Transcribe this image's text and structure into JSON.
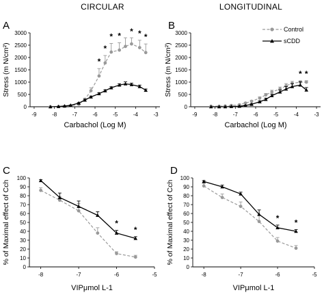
{
  "figure": {
    "column_titles": [
      "CIRCULAR",
      "LONGITUDINAL"
    ],
    "legend": [
      {
        "label": "Control",
        "color": "#999999",
        "dash": true,
        "marker": "circle"
      },
      {
        "label": "sCDD",
        "color": "#000000",
        "dash": false,
        "marker": "triangle"
      }
    ]
  },
  "chart_data": [
    {
      "panel": "A",
      "type": "line",
      "column_title": "CIRCULAR",
      "xlabel": "Carbachol (Log M)",
      "ylabel": "Stress (m N/cm²)",
      "xlim": [
        -9.2,
        -2.8
      ],
      "ylim": [
        0,
        3000
      ],
      "xticks": [
        -9,
        -8,
        -7,
        -6,
        -5,
        -4,
        -3
      ],
      "yticks": [
        0,
        500,
        1000,
        1500,
        2000,
        2500,
        3000
      ],
      "x": [
        -8.2,
        -7.8,
        -7.5,
        -7.2,
        -6.8,
        -6.5,
        -6.2,
        -5.8,
        -5.5,
        -5.2,
        -4.8,
        -4.5,
        -4.2,
        -3.8,
        -3.5
      ],
      "series": [
        {
          "name": "Control",
          "values": [
            0,
            10,
            20,
            40,
            100,
            300,
            650,
            1250,
            1780,
            2220,
            2300,
            2450,
            2550,
            2400,
            2200
          ],
          "errors": [
            0,
            0,
            0,
            10,
            20,
            50,
            120,
            300,
            300,
            350,
            300,
            350,
            250,
            300,
            350
          ]
        },
        {
          "name": "sCDD",
          "values": [
            0,
            10,
            30,
            60,
            150,
            270,
            400,
            530,
            650,
            770,
            880,
            930,
            900,
            820,
            670
          ],
          "errors": [
            0,
            0,
            0,
            10,
            20,
            30,
            30,
            40,
            40,
            40,
            50,
            80,
            60,
            60,
            50
          ]
        }
      ],
      "annotations": [
        "*",
        "*",
        "*",
        "*",
        "*",
        "*",
        "*"
      ],
      "annotation_x": [
        -5.8,
        -5.5,
        -5.2,
        -4.8,
        -4.2,
        -3.8,
        -3.5
      ]
    },
    {
      "panel": "B",
      "type": "line",
      "column_title": "LONGITUDINAL",
      "xlabel": "Carbachol (Log M)",
      "ylabel": "Stress (m N/cm²)",
      "xlim": [
        -9.2,
        -2.8
      ],
      "ylim": [
        0,
        3000
      ],
      "xticks": [
        -9,
        -8,
        -7,
        -6,
        -5,
        -4,
        -3
      ],
      "yticks": [
        0,
        500,
        1000,
        1500,
        2000,
        2500,
        3000
      ],
      "x": [
        -8.2,
        -7.8,
        -7.5,
        -7.2,
        -6.8,
        -6.5,
        -6.2,
        -5.8,
        -5.5,
        -5.2,
        -4.8,
        -4.5,
        -4.2,
        -3.8,
        -3.5
      ],
      "series": [
        {
          "name": "Control",
          "values": [
            20,
            20,
            30,
            50,
            80,
            150,
            220,
            350,
            480,
            600,
            720,
            850,
            950,
            1000,
            1000
          ],
          "errors": [
            0,
            0,
            10,
            10,
            20,
            30,
            40,
            50,
            60,
            70,
            80,
            90,
            80,
            60,
            60
          ]
        },
        {
          "name": "sCDD",
          "values": [
            0,
            0,
            0,
            10,
            20,
            50,
            100,
            200,
            300,
            450,
            600,
            720,
            820,
            880,
            680
          ],
          "errors": [
            0,
            0,
            0,
            0,
            10,
            20,
            30,
            40,
            50,
            60,
            80,
            100,
            120,
            130,
            100
          ]
        }
      ],
      "annotations": [
        "*",
        "*"
      ],
      "annotation_x": [
        -3.8,
        -3.5
      ]
    },
    {
      "panel": "C",
      "type": "line",
      "xlabel": "VIPμmol L-1",
      "ylabel": "% of Maximal effect of Cch",
      "xlim": [
        -8.3,
        -5.0
      ],
      "ylim": [
        0,
        100
      ],
      "xticks": [
        -8,
        -7,
        -6,
        -5
      ],
      "xtick_labels": [
        "-8",
        "-7",
        "-6",
        "-5"
      ],
      "yticks": [
        0,
        10,
        20,
        30,
        40,
        50,
        60,
        70,
        80,
        90,
        100
      ],
      "x": [
        -8.0,
        -7.5,
        -7.0,
        -6.5,
        -6.0,
        -5.5
      ],
      "series": [
        {
          "name": "Control",
          "values": [
            86,
            75,
            63,
            38,
            15,
            11
          ],
          "errors": [
            3,
            4,
            8,
            6,
            2,
            2
          ]
        },
        {
          "name": "sCDD",
          "values": [
            97,
            78,
            68,
            58,
            38,
            32
          ],
          "errors": [
            1,
            5,
            6,
            4,
            3,
            2
          ]
        }
      ],
      "annotations": [
        "*",
        "*"
      ],
      "annotation_x": [
        -6.0,
        -5.5
      ]
    },
    {
      "panel": "D",
      "type": "line",
      "xlabel": "VIPμmol L-1",
      "ylabel": "% of Maximal effect of Cch",
      "xlim": [
        -8.3,
        -5.0
      ],
      "ylim": [
        0,
        100
      ],
      "xticks": [
        -8,
        -7,
        -6,
        -5
      ],
      "xtick_labels": [
        "-8",
        "-7",
        "-6",
        "-5"
      ],
      "yticks": [
        0,
        10,
        20,
        30,
        40,
        50,
        60,
        70,
        80,
        90,
        100
      ],
      "x": [
        -8.0,
        -7.5,
        -7.0,
        -6.5,
        -6.0,
        -5.5
      ],
      "series": [
        {
          "name": "Control",
          "values": [
            91,
            78,
            68,
            51,
            29,
            21
          ],
          "errors": [
            3,
            4,
            5,
            7,
            4,
            3
          ]
        },
        {
          "name": "sCDD",
          "values": [
            96,
            90,
            82,
            59,
            44,
            40
          ],
          "errors": [
            1,
            2,
            2,
            5,
            3,
            2
          ]
        }
      ],
      "annotations": [
        "*",
        "*"
      ],
      "annotation_x": [
        -6.0,
        -5.5
      ]
    }
  ]
}
